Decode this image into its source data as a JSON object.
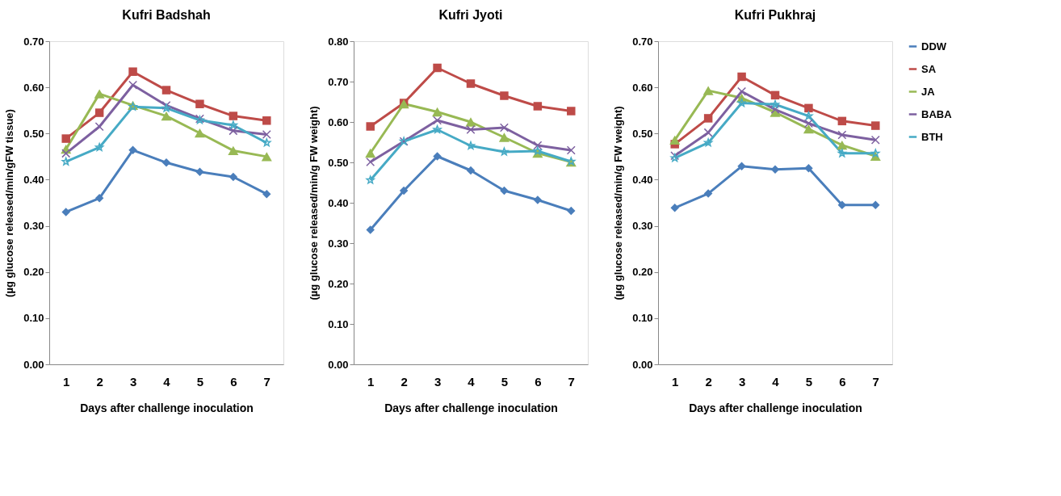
{
  "chart_data": [
    {
      "type": "line",
      "title": "Kufri Badshah",
      "xlabel": "Days after challenge inoculation",
      "ylabel": "(µg glucose released/min/gFW tissue)",
      "categories": [
        "1",
        "2",
        "3",
        "4",
        "5",
        "6",
        "7"
      ],
      "ylim": [
        0,
        0.7
      ],
      "yticks": [
        {
          "value": 0,
          "label": "0.00"
        },
        {
          "value": 0.1,
          "label": "0.10"
        },
        {
          "value": 0.2,
          "label": "0.20"
        },
        {
          "value": 0.3,
          "label": "0.30"
        },
        {
          "value": 0.4,
          "label": "0.40"
        },
        {
          "value": 0.5,
          "label": "0.50"
        },
        {
          "value": 0.6,
          "label": "0.60"
        },
        {
          "value": 0.7,
          "label": "0.70"
        }
      ],
      "legend": "top right",
      "grid": false,
      "line_style": "solid",
      "series": [
        {
          "name": "DDW",
          "color": "#4a7ebb",
          "marker": "diamond",
          "values": [
            0.33,
            0.36,
            0.464,
            0.437,
            0.417,
            0.406,
            0.369
          ]
        },
        {
          "name": "SA",
          "color": "#be4b48",
          "marker": "square",
          "values": [
            0.489,
            0.545,
            0.634,
            0.594,
            0.564,
            0.538,
            0.528
          ]
        },
        {
          "name": "JA",
          "color": "#98b954",
          "marker": "triangle",
          "values": [
            0.466,
            0.586,
            0.561,
            0.538,
            0.501,
            0.463,
            0.45
          ]
        },
        {
          "name": "BABA",
          "color": "#7d60a0",
          "marker": "cross",
          "values": [
            0.457,
            0.515,
            0.605,
            0.561,
            0.532,
            0.506,
            0.498
          ]
        },
        {
          "name": "BTH",
          "color": "#46aac5",
          "marker": "star",
          "values": [
            0.439,
            0.47,
            0.558,
            0.555,
            0.529,
            0.518,
            0.48
          ]
        }
      ]
    },
    {
      "type": "line",
      "title": "Kufri Jyoti",
      "xlabel": "Days after challenge inoculation",
      "ylabel": "(µg glucose released/min/g FW weight)",
      "categories": [
        "1",
        "2",
        "3",
        "4",
        "5",
        "6",
        "7"
      ],
      "ylim": [
        0,
        0.8
      ],
      "yticks": [
        {
          "value": 0,
          "label": "0.00"
        },
        {
          "value": 0.1,
          "label": "0.10"
        },
        {
          "value": 0.2,
          "label": "0.20"
        },
        {
          "value": 0.3,
          "label": "0.30"
        },
        {
          "value": 0.4,
          "label": "0.40"
        },
        {
          "value": 0.5,
          "label": "0.50"
        },
        {
          "value": 0.6,
          "label": "0.60"
        },
        {
          "value": 0.7,
          "label": "0.70"
        },
        {
          "value": 0.8,
          "label": "0.80"
        }
      ],
      "legend": "top right",
      "grid": false,
      "line_style": "solid",
      "series": [
        {
          "name": "DDW",
          "color": "#4a7ebb",
          "marker": "diamond",
          "values": [
            0.333,
            0.43,
            0.515,
            0.48,
            0.43,
            0.407,
            0.38
          ]
        },
        {
          "name": "SA",
          "color": "#be4b48",
          "marker": "square",
          "values": [
            0.589,
            0.647,
            0.734,
            0.695,
            0.665,
            0.639,
            0.627
          ]
        },
        {
          "name": "JA",
          "color": "#98b954",
          "marker": "triangle",
          "values": [
            0.523,
            0.645,
            0.625,
            0.6,
            0.562,
            0.523,
            0.501
          ]
        },
        {
          "name": "BABA",
          "color": "#7d60a0",
          "marker": "cross",
          "values": [
            0.501,
            0.552,
            0.604,
            0.581,
            0.586,
            0.542,
            0.53
          ]
        },
        {
          "name": "BTH",
          "color": "#46aac5",
          "marker": "star",
          "values": [
            0.456,
            0.552,
            0.581,
            0.541,
            0.526,
            0.528,
            0.502
          ]
        }
      ]
    },
    {
      "type": "line",
      "title": "Kufri Pukhraj",
      "xlabel": "Days after challenge inoculation",
      "ylabel": "(µg glucose released/min/g FW weight)",
      "categories": [
        "1",
        "2",
        "3",
        "4",
        "5",
        "6",
        "7"
      ],
      "ylim": [
        0,
        0.7
      ],
      "yticks": [
        {
          "value": 0,
          "label": "0.00"
        },
        {
          "value": 0.1,
          "label": "0.10"
        },
        {
          "value": 0.2,
          "label": "0.20"
        },
        {
          "value": 0.3,
          "label": "0.30"
        },
        {
          "value": 0.4,
          "label": "0.40"
        },
        {
          "value": 0.5,
          "label": "0.50"
        },
        {
          "value": 0.6,
          "label": "0.60"
        },
        {
          "value": 0.7,
          "label": "0.70"
        }
      ],
      "legend": "top right",
      "grid": false,
      "line_style": "solid",
      "series": [
        {
          "name": "DDW",
          "color": "#4a7ebb",
          "marker": "diamond",
          "values": [
            0.339,
            0.37,
            0.429,
            0.422,
            0.425,
            0.345,
            0.345
          ]
        },
        {
          "name": "SA",
          "color": "#be4b48",
          "marker": "square",
          "values": [
            0.477,
            0.533,
            0.623,
            0.583,
            0.555,
            0.527,
            0.517
          ]
        },
        {
          "name": "JA",
          "color": "#98b954",
          "marker": "triangle",
          "values": [
            0.486,
            0.593,
            0.577,
            0.546,
            0.51,
            0.475,
            0.451
          ]
        },
        {
          "name": "BABA",
          "color": "#7d60a0",
          "marker": "cross",
          "values": [
            0.452,
            0.502,
            0.591,
            0.552,
            0.522,
            0.497,
            0.486
          ]
        },
        {
          "name": "BTH",
          "color": "#46aac5",
          "marker": "star",
          "values": [
            0.447,
            0.48,
            0.566,
            0.563,
            0.538,
            0.457,
            0.457
          ]
        }
      ]
    }
  ]
}
